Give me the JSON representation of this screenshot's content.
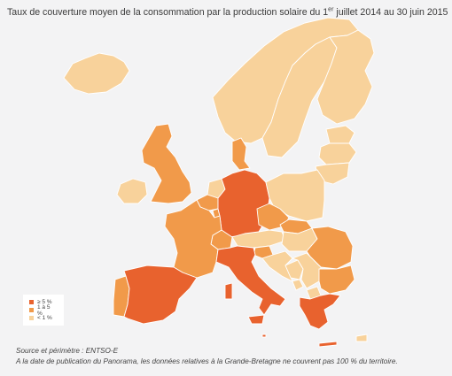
{
  "title": {
    "before": "Taux de couverture moyen de la consommation par la production solaire du 1",
    "sup": "er",
    "after": " juillet 2014 au 30 juin 2015"
  },
  "legend": [
    {
      "label": "≥ 5 %",
      "color": "#e8622e"
    },
    {
      "label": "1 à 5 %",
      "color": "#f19a4a"
    },
    {
      "label": "< 1 %",
      "color": "#f8d29b"
    }
  ],
  "colors": {
    "background": "#f3f3f4",
    "high": "#e8622e",
    "mid": "#f19a4a",
    "low": "#f8d29b",
    "border": "#ffffff"
  },
  "countries": [
    {
      "name": "Germany",
      "class": "high"
    },
    {
      "name": "Italy",
      "class": "high"
    },
    {
      "name": "Spain",
      "class": "high"
    },
    {
      "name": "Greece",
      "class": "high"
    },
    {
      "name": "Malta",
      "class": "high"
    },
    {
      "name": "United Kingdom",
      "class": "mid"
    },
    {
      "name": "France",
      "class": "mid"
    },
    {
      "name": "Belgium",
      "class": "mid"
    },
    {
      "name": "Czech Republic",
      "class": "mid"
    },
    {
      "name": "Bulgaria",
      "class": "mid"
    },
    {
      "name": "Romania",
      "class": "mid"
    },
    {
      "name": "Portugal",
      "class": "mid"
    },
    {
      "name": "Switzerland",
      "class": "mid"
    },
    {
      "name": "Denmark",
      "class": "mid"
    },
    {
      "name": "Slovenia",
      "class": "mid"
    },
    {
      "name": "Luxembourg",
      "class": "mid"
    },
    {
      "name": "Slovakia",
      "class": "mid"
    },
    {
      "name": "Netherlands",
      "class": "low"
    },
    {
      "name": "Austria",
      "class": "low"
    },
    {
      "name": "Poland",
      "class": "low"
    },
    {
      "name": "Hungary",
      "class": "low"
    },
    {
      "name": "Ireland",
      "class": "low"
    },
    {
      "name": "Norway",
      "class": "low"
    },
    {
      "name": "Sweden",
      "class": "low"
    },
    {
      "name": "Finland",
      "class": "low"
    },
    {
      "name": "Iceland",
      "class": "low"
    },
    {
      "name": "Estonia",
      "class": "low"
    },
    {
      "name": "Latvia",
      "class": "low"
    },
    {
      "name": "Lithuania",
      "class": "low"
    },
    {
      "name": "Croatia",
      "class": "low"
    },
    {
      "name": "Bosnia and Herzegovina",
      "class": "low"
    },
    {
      "name": "Serbia",
      "class": "low"
    },
    {
      "name": "Montenegro",
      "class": "low"
    },
    {
      "name": "Macedonia",
      "class": "low"
    },
    {
      "name": "Cyprus",
      "class": "low"
    }
  ],
  "footer": {
    "source": "Source et périmètre : ENTSO-E",
    "note": "A la date de publication du Panorama, les données relatives à la Grande-Bretagne ne couvrent pas 100 % du territoire."
  }
}
